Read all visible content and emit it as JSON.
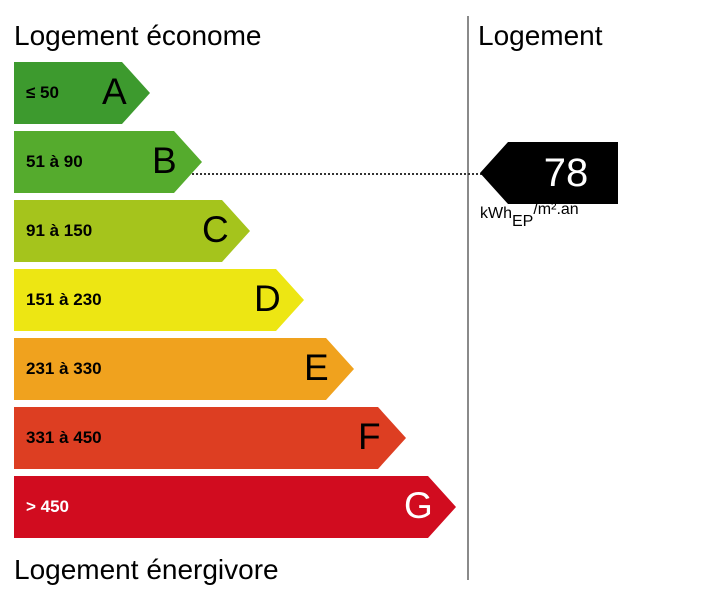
{
  "labels": {
    "top": "Logement économe",
    "bottom": "Logement énergivore",
    "right": "Logement"
  },
  "classes": [
    {
      "letter": "A",
      "range": "≤ 50",
      "color": "#3d9a2e"
    },
    {
      "letter": "B",
      "range": "51 à 90",
      "color": "#55ab2d"
    },
    {
      "letter": "C",
      "range": "91 à 150",
      "color": "#a5c41c"
    },
    {
      "letter": "D",
      "range": "151 à 230",
      "color": "#ede613"
    },
    {
      "letter": "E",
      "range": "231 à 330",
      "color": "#f0a21e"
    },
    {
      "letter": "F",
      "range": "331 à 450",
      "color": "#dd3e22"
    },
    {
      "letter": "G",
      "range": "> 450",
      "color": "#d10c1f"
    }
  ],
  "indicator": {
    "value": "78",
    "class": "B",
    "color": "#000000",
    "unit_main": "kWh",
    "unit_sub": "EP",
    "unit_rest": "/m².an"
  }
}
